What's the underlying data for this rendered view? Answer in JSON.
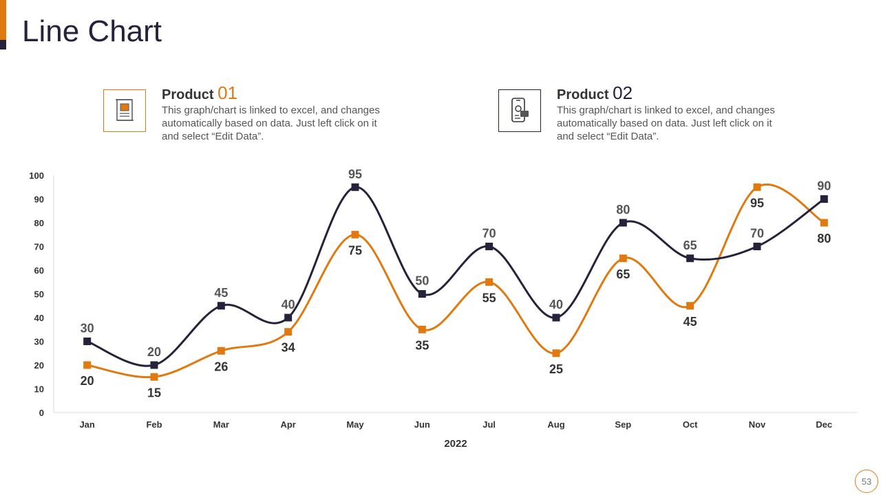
{
  "title": "Line Chart",
  "products": [
    {
      "label": "Product",
      "number": "01",
      "description": "This graph/chart is linked to excel, and changes automatically based on data. Just left click on it and select “Edit Data”.",
      "icon": "certificate-document-icon",
      "color": "#e07a10"
    },
    {
      "label": "Product",
      "number": "02",
      "description": "This graph/chart is linked to excel, and changes automatically based on data. Just left click on it and select “Edit Data”.",
      "icon": "mobile-payment-icon",
      "color": "#24233b"
    }
  ],
  "page_number": "53",
  "chart_data": {
    "type": "line",
    "categories": [
      "Jan",
      "Feb",
      "Mar",
      "Apr",
      "May",
      "Jun",
      "Jul",
      "Aug",
      "Sep",
      "Oct",
      "Nov",
      "Dec"
    ],
    "xlabel": "2022",
    "ylabel": "",
    "ylim": [
      0,
      100
    ],
    "yticks": [
      0,
      10,
      20,
      30,
      40,
      50,
      60,
      70,
      80,
      90,
      100
    ],
    "grid": false,
    "smooth": true,
    "series": [
      {
        "values": [
          30,
          20,
          45,
          40,
          95,
          50,
          70,
          40,
          80,
          65,
          70,
          90
        ],
        "color": "#24233b",
        "label_position": "above"
      },
      {
        "values": [
          20,
          15,
          26,
          34,
          75,
          35,
          55,
          25,
          65,
          45,
          95,
          80
        ],
        "color": "#e07a10",
        "label_position": "below"
      }
    ]
  }
}
